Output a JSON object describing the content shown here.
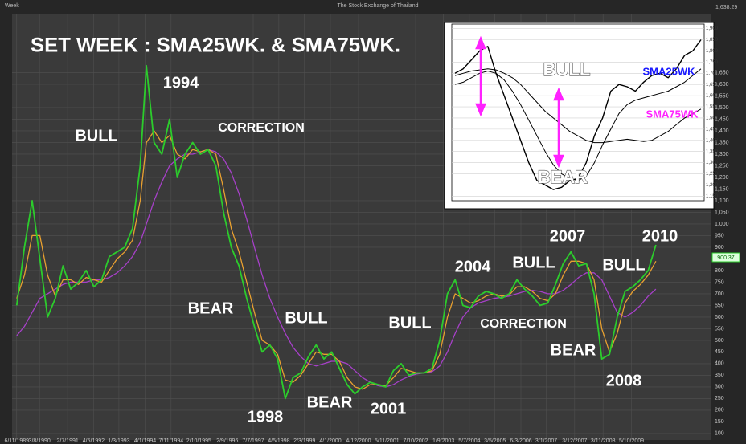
{
  "chart_data": [
    {
      "type": "line",
      "title": "SET WEEK : SMA25WK. & SMA75WK.",
      "subtitle": "The Stock Exchange of Thailand",
      "period_label": "Week",
      "top_value_label": "1,638.29",
      "last_value_label": "900.37",
      "annotations": [
        "1994",
        "BULL",
        "CORRECTION",
        "BEAR",
        "BULL",
        "1998",
        "BEAR",
        "2001",
        "BULL",
        "2004",
        "BULL",
        "2007",
        "CORRECTION",
        "BEAR",
        "2008",
        "BULL",
        "2010"
      ],
      "x": [
        1989.85,
        1990.1,
        1990.35,
        1990.6,
        1990.85,
        1991.1,
        1991.35,
        1991.6,
        1991.85,
        1992.1,
        1992.35,
        1992.6,
        1992.85,
        1993.1,
        1993.35,
        1993.6,
        1993.85,
        1994.05,
        1994.3,
        1994.55,
        1994.8,
        1995.05,
        1995.3,
        1995.55,
        1995.8,
        1996.05,
        1996.3,
        1996.55,
        1996.8,
        1997.05,
        1997.3,
        1997.55,
        1997.8,
        1998.05,
        1998.3,
        1998.55,
        1998.8,
        1999.05,
        1999.3,
        1999.55,
        1999.8,
        2000.05,
        2000.3,
        2000.55,
        2000.8,
        2001.05,
        2001.3,
        2001.55,
        2001.8,
        2002.05,
        2002.3,
        2002.55,
        2002.8,
        2003.05,
        2003.3,
        2003.55,
        2003.8,
        2004.05,
        2004.3,
        2004.55,
        2004.8,
        2005.05,
        2005.3,
        2005.55,
        2005.8,
        2006.05,
        2006.3,
        2006.55,
        2006.8,
        2007.05,
        2007.3,
        2007.55,
        2007.8,
        2008.05,
        2008.3,
        2008.55,
        2008.8,
        2009.05,
        2009.3,
        2009.55,
        2009.8,
        2010.05,
        2010.3,
        2010.55
      ],
      "series": [
        {
          "name": "SET",
          "color": "#2ccc2c",
          "values": [
            650,
            900,
            1100,
            850,
            600,
            680,
            820,
            720,
            750,
            800,
            730,
            760,
            860,
            880,
            900,
            980,
            1250,
            1680,
            1350,
            1300,
            1450,
            1200,
            1300,
            1350,
            1300,
            1320,
            1250,
            1050,
            900,
            820,
            680,
            560,
            450,
            480,
            420,
            250,
            340,
            360,
            430,
            480,
            420,
            450,
            380,
            310,
            270,
            300,
            320,
            310,
            300,
            370,
            400,
            350,
            360,
            360,
            380,
            500,
            700,
            760,
            650,
            640,
            690,
            710,
            700,
            680,
            700,
            760,
            720,
            690,
            650,
            660,
            740,
            830,
            880,
            820,
            830,
            700,
            420,
            440,
            600,
            710,
            730,
            760,
            800,
            910
          ]
        },
        {
          "name": "SMA25WK",
          "color": "#e8a030",
          "values": [
            680,
            780,
            950,
            950,
            780,
            690,
            760,
            760,
            740,
            770,
            760,
            750,
            800,
            850,
            880,
            930,
            1100,
            1350,
            1400,
            1350,
            1380,
            1300,
            1280,
            1320,
            1310,
            1320,
            1300,
            1150,
            980,
            880,
            750,
            620,
            500,
            480,
            440,
            330,
            320,
            350,
            400,
            450,
            440,
            440,
            410,
            340,
            300,
            290,
            310,
            310,
            305,
            340,
            380,
            370,
            360,
            360,
            370,
            440,
            600,
            700,
            680,
            660,
            670,
            690,
            700,
            690,
            695,
            730,
            730,
            710,
            680,
            670,
            700,
            780,
            840,
            840,
            830,
            760,
            550,
            450,
            530,
            660,
            710,
            740,
            780,
            840
          ]
        },
        {
          "name": "SMA75WK",
          "color": "#a640c8",
          "values": [
            520,
            560,
            620,
            680,
            700,
            720,
            740,
            750,
            750,
            750,
            760,
            760,
            770,
            790,
            820,
            860,
            920,
            1000,
            1100,
            1180,
            1250,
            1280,
            1300,
            1300,
            1310,
            1320,
            1310,
            1280,
            1220,
            1130,
            1020,
            900,
            780,
            680,
            600,
            530,
            470,
            430,
            400,
            390,
            400,
            410,
            410,
            400,
            370,
            340,
            320,
            305,
            300,
            310,
            330,
            345,
            355,
            360,
            365,
            390,
            450,
            530,
            600,
            640,
            660,
            670,
            680,
            685,
            690,
            700,
            710,
            715,
            710,
            700,
            700,
            715,
            740,
            770,
            790,
            790,
            760,
            690,
            620,
            600,
            620,
            650,
            690,
            720
          ]
        }
      ],
      "xlim": [
        1989.7,
        2012.35
      ],
      "xticks": [
        {
          "value": 1989.85,
          "label": "6/11/1989"
        },
        {
          "value": 1990.59,
          "label": "3/8/1990"
        },
        {
          "value": 1991.5,
          "label": "2/7/1991"
        },
        {
          "value": 1992.34,
          "label": "4/5/1992"
        },
        {
          "value": 1993.16,
          "label": "1/3/1993"
        },
        {
          "value": 1994.01,
          "label": "4/1/1994"
        },
        {
          "value": 1994.85,
          "label": "7/11/1994"
        },
        {
          "value": 1995.75,
          "label": "2/10/1995"
        },
        {
          "value": 1996.67,
          "label": "2/9/1996"
        },
        {
          "value": 1997.51,
          "label": "7/7/1997"
        },
        {
          "value": 1998.34,
          "label": "4/5/1998"
        },
        {
          "value": 1999.17,
          "label": "2/3/1999"
        },
        {
          "value": 2000.01,
          "label": "4/1/2000"
        },
        {
          "value": 2000.92,
          "label": "4/12/2000"
        },
        {
          "value": 2001.84,
          "label": "5/11/2001"
        },
        {
          "value": 2002.77,
          "label": "7/10/2002"
        },
        {
          "value": 2003.67,
          "label": "1/9/2003"
        },
        {
          "value": 2004.51,
          "label": "5/7/2004"
        },
        {
          "value": 2005.34,
          "label": "3/5/2005"
        },
        {
          "value": 2006.18,
          "label": "6/3/2006"
        },
        {
          "value": 2007.0,
          "label": "3/1/2007"
        },
        {
          "value": 2007.92,
          "label": "3/12/2007"
        },
        {
          "value": 2008.84,
          "label": "3/11/2008"
        },
        {
          "value": 2009.76,
          "label": "5/10/2009"
        }
      ],
      "ylim": [
        72,
        1900
      ],
      "yticks": [
        100,
        150,
        200,
        250,
        300,
        350,
        400,
        450,
        500,
        550,
        600,
        650,
        700,
        750,
        800,
        850,
        900,
        950,
        {
          "value": 1000,
          "label": "1,000"
        },
        {
          "value": 1050,
          "label": "1,050"
        },
        {
          "value": 1100,
          "label": "1,100"
        },
        {
          "value": 1150,
          "label": "1,150"
        },
        {
          "value": 1200,
          "label": "1,200"
        },
        {
          "value": 1250,
          "label": "1,250"
        },
        {
          "value": 1300,
          "label": "1,300"
        },
        {
          "value": 1350,
          "label": "1,350"
        },
        {
          "value": 1400,
          "label": "1,400"
        },
        {
          "value": 1450,
          "label": "1,450"
        },
        {
          "value": 1500,
          "label": "1,500"
        },
        {
          "value": 1550,
          "label": "1,550"
        },
        {
          "value": 1600,
          "label": "1,600"
        },
        {
          "value": 1650,
          "label": "1,650"
        }
      ],
      "grid": true
    },
    {
      "type": "line",
      "annotations": [
        "BULL",
        "BEAR"
      ],
      "series": [
        {
          "name": "Price",
          "color": "#000000",
          "values": [
            1700,
            1720,
            1760,
            1800,
            1820,
            1700,
            1600,
            1500,
            1400,
            1300,
            1220,
            1200,
            1180,
            1190,
            1220,
            1230,
            1300,
            1420,
            1500,
            1620,
            1650,
            1640,
            1620,
            1660,
            1690,
            1700,
            1680,
            1720,
            1780,
            1800,
            1850
          ]
        },
        {
          "name": "SMA25WK",
          "color": "#000000",
          "label_color": "#1a1aff",
          "values": [
            1650,
            1660,
            1680,
            1700,
            1710,
            1700,
            1670,
            1620,
            1560,
            1490,
            1420,
            1350,
            1290,
            1250,
            1230,
            1220,
            1240,
            1300,
            1380,
            1450,
            1520,
            1560,
            1580,
            1590,
            1600,
            1610,
            1620,
            1640,
            1660,
            1690,
            1720
          ]
        },
        {
          "name": "SMA75WK",
          "color": "#000000",
          "label_color": "#ff22ff",
          "values": [
            1690,
            1700,
            1710,
            1715,
            1720,
            1715,
            1700,
            1680,
            1650,
            1610,
            1570,
            1530,
            1500,
            1470,
            1440,
            1420,
            1400,
            1390,
            1390,
            1395,
            1400,
            1405,
            1400,
            1395,
            1400,
            1420,
            1440,
            1470,
            1500,
            1520,
            1540
          ]
        }
      ],
      "ylim": [
        1130,
        1920
      ],
      "yticks": [
        {
          "value": 1150,
          "label": "1,150"
        },
        {
          "value": 1200,
          "label": "1,200"
        },
        {
          "value": 1250,
          "label": "1,250"
        },
        {
          "value": 1300,
          "label": "1,300"
        },
        {
          "value": 1350,
          "label": "1,350"
        },
        {
          "value": 1400,
          "label": "1,400"
        },
        {
          "value": 1450,
          "label": "1,450"
        },
        {
          "value": 1500,
          "label": "1,500"
        },
        {
          "value": 1550,
          "label": "1,550"
        },
        {
          "value": 1600,
          "label": "1,600"
        },
        {
          "value": 1650,
          "label": "1,650"
        },
        {
          "value": 1700,
          "label": "1,700"
        },
        {
          "value": 1750,
          "label": "1,750"
        },
        {
          "value": 1800,
          "label": "1,800"
        },
        {
          "value": 1850,
          "label": "1,850"
        },
        {
          "value": 1900,
          "label": "1,900"
        }
      ],
      "grid": true
    }
  ]
}
